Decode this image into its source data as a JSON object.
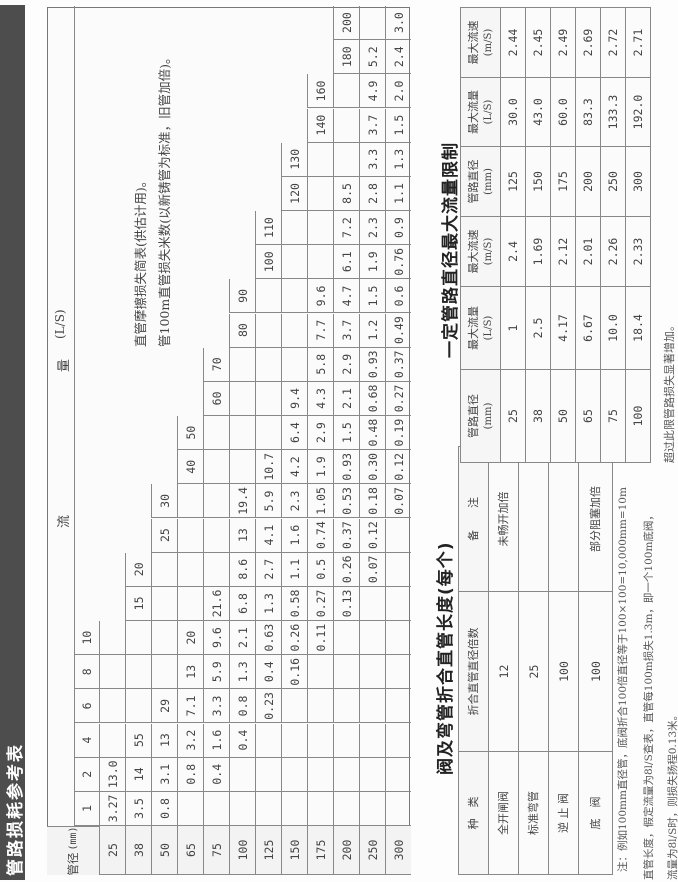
{
  "title": "管路损耗参考表",
  "main_table": {
    "diameter_header": "管径",
    "diameter_unit": "(mm)",
    "flow_header_1": "流",
    "flow_header_2": "量",
    "flow_unit": "(L/S)",
    "flows": [
      "1",
      "2",
      "4",
      "6",
      "8",
      "10",
      "15",
      "20",
      "25",
      "30",
      "40",
      "50",
      "60",
      "70",
      "80",
      "90",
      "100",
      "110",
      "120",
      "130",
      "140",
      "160",
      "180",
      "200"
    ],
    "rows": [
      {
        "diameter": "25",
        "values": [
          "3.27",
          "13.0",
          "",
          "",
          "",
          "",
          "",
          "",
          "",
          "",
          "",
          "",
          "",
          "",
          "",
          "",
          "",
          "",
          "",
          "",
          "",
          "",
          "",
          ""
        ]
      },
      {
        "diameter": "38",
        "values": [
          "3.5",
          "14",
          "55",
          "",
          "",
          "",
          "",
          "",
          "",
          "",
          "",
          "",
          "",
          "",
          "",
          "",
          "",
          "",
          "",
          "",
          "",
          "",
          "",
          ""
        ]
      },
      {
        "diameter": "50",
        "values": [
          "0.8",
          "3.1",
          "13",
          "29",
          "",
          "",
          "",
          "",
          "",
          "",
          "",
          "",
          "",
          "",
          "",
          "",
          "",
          "",
          "",
          "",
          "",
          "",
          "",
          ""
        ]
      },
      {
        "diameter": "65",
        "values": [
          "",
          "0.8",
          "3.2",
          "7.1",
          "13",
          "20",
          "",
          "",
          "",
          "",
          "",
          "",
          "",
          "",
          "",
          "",
          "",
          "",
          "",
          "",
          "",
          "",
          "",
          ""
        ]
      },
      {
        "diameter": "75",
        "values": [
          "",
          "0.4",
          "1.6",
          "3.3",
          "5.9",
          "9.6",
          "21.6",
          "",
          "",
          "",
          "",
          "",
          "",
          "",
          "",
          "",
          "",
          "",
          "",
          "",
          "",
          "",
          "",
          ""
        ]
      },
      {
        "diameter": "100",
        "values": [
          "",
          "",
          "0.4",
          "0.8",
          "1.3",
          "2.1",
          "6.8",
          "8.6",
          "13",
          "19.4",
          "",
          "",
          "",
          "",
          "",
          "",
          "",
          "",
          "",
          "",
          "",
          "",
          "",
          ""
        ]
      },
      {
        "diameter": "125",
        "values": [
          "",
          "",
          "",
          "0.23",
          "0.4",
          "0.63",
          "1.3",
          "2.7",
          "4.1",
          "5.9",
          "10.7",
          "",
          "",
          "",
          "",
          "",
          "",
          "",
          "",
          "",
          "",
          "",
          "",
          ""
        ]
      },
      {
        "diameter": "150",
        "values": [
          "",
          "",
          "",
          "",
          "0.16",
          "0.26",
          "0.58",
          "1.1",
          "1.6",
          "2.3",
          "4.2",
          "6.4",
          "9.4",
          "",
          "",
          "",
          "",
          "",
          "",
          "",
          "",
          "",
          "",
          ""
        ]
      },
      {
        "diameter": "175",
        "values": [
          "",
          "",
          "",
          "",
          "",
          "0.11",
          "0.27",
          "0.5",
          "0.74",
          "1.05",
          "1.9",
          "2.9",
          "4.3",
          "5.8",
          "7.7",
          "9.6",
          "",
          "",
          "",
          "",
          "",
          "",
          "",
          ""
        ]
      },
      {
        "diameter": "200",
        "values": [
          "",
          "",
          "",
          "",
          "",
          "",
          "0.13",
          "0.26",
          "0.37",
          "0.53",
          "0.93",
          "1.5",
          "2.1",
          "2.9",
          "3.7",
          "4.7",
          "6.1",
          "7.2",
          "8.5",
          "",
          "",
          "",
          "",
          ""
        ]
      },
      {
        "diameter": "250",
        "values": [
          "",
          "",
          "",
          "",
          "",
          "",
          "",
          "0.07",
          "0.12",
          "0.18",
          "0.30",
          "0.48",
          "0.68",
          "0.93",
          "1.2",
          "1.5",
          "1.9",
          "2.3",
          "2.8",
          "3.3",
          "3.7",
          "4.9",
          "5.2",
          ""
        ]
      },
      {
        "diameter": "300",
        "values": [
          "",
          "",
          "",
          "",
          "",
          "",
          "",
          "",
          "",
          "0.07",
          "0.12",
          "0.19",
          "0.27",
          "0.37",
          "0.49",
          "0.6",
          "0.76",
          "0.9",
          "1.1",
          "1.3",
          "1.5",
          "2.0",
          "2.4",
          "3.0"
        ]
      }
    ],
    "caption_1": "直管摩擦损失简表(供估计用)。",
    "caption_2": "管100m直管损失米数(以新铸管为标准，旧管加倍)。"
  },
  "valve_table": {
    "title": "阀及弯管折合直管长度(每个)",
    "headers": [
      "种　类",
      "折合直管直径倍数",
      "备　　注"
    ],
    "rows": [
      [
        "全开闸阀",
        "12",
        "未畅开加倍"
      ],
      [
        "标准弯管",
        "25",
        ""
      ],
      [
        "逆 止 阀",
        "100",
        ""
      ],
      [
        "底　阀",
        "100",
        "部分阻塞加倍"
      ]
    ],
    "notes": [
      "注：例如100mm直径管，底阀折合100倍直径等于100×100=10,000mm=10m",
      "直管长度，假定流量为8l/S查表，直管每100m损失1.3m，即一个100m底阀，",
      "流量为8l/S时，则损失扬程0.13米。"
    ]
  },
  "max_flow_table": {
    "title": "一定管路直径最大流量限制",
    "headers": [
      {
        "label": "管路直径",
        "unit": "(mm)"
      },
      {
        "label": "最大流量",
        "unit": "(L/S)"
      },
      {
        "label": "最大流速",
        "unit": "(m/S)"
      },
      {
        "label": "管路直径",
        "unit": "(mm)"
      },
      {
        "label": "最大流量",
        "unit": "(L/S)"
      },
      {
        "label": "最大流速",
        "unit": "(m/S)"
      }
    ],
    "rows": [
      [
        "25",
        "1",
        "2.4",
        "125",
        "30.0",
        "2.44"
      ],
      [
        "38",
        "2.5",
        "1.69",
        "150",
        "43.0",
        "2.45"
      ],
      [
        "50",
        "4.17",
        "2.12",
        "175",
        "60.0",
        "2.49"
      ],
      [
        "65",
        "6.67",
        "2.01",
        "200",
        "83.3",
        "2.69"
      ],
      [
        "75",
        "10.0",
        "2.26",
        "250",
        "133.3",
        "2.72"
      ],
      [
        "100",
        "18.4",
        "2.33",
        "300",
        "192.0",
        "2.71"
      ]
    ],
    "footnote": "超过此限管路损失显著增加。"
  }
}
